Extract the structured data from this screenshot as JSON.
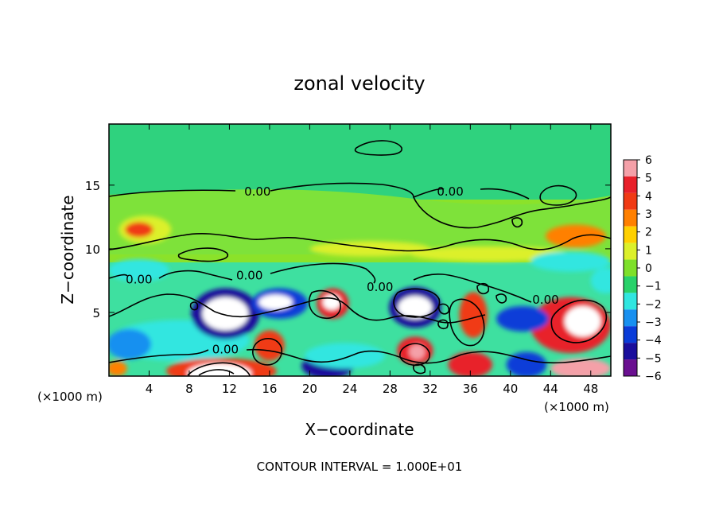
{
  "chart_data": {
    "type": "heatmap",
    "title": "zonal velocity",
    "xlabel": "X−coordinate",
    "ylabel": "Z−coordinate",
    "x_unit_left": "(×1000 m)",
    "x_unit_right": "(×1000 m)",
    "xlim": [
      0,
      50
    ],
    "ylim": [
      0,
      19.8
    ],
    "xticks": [
      4,
      8,
      12,
      16,
      20,
      24,
      28,
      32,
      36,
      40,
      44,
      48
    ],
    "xtick_labels": [
      "4",
      "8",
      "12",
      "16",
      "20",
      "24",
      "28",
      "32",
      "36",
      "40",
      "44",
      "48"
    ],
    "yticks": [
      5,
      10,
      15
    ],
    "ytick_labels": [
      "5",
      "10",
      "15"
    ],
    "colorbar": {
      "levels": [
        6,
        5,
        4,
        3,
        2,
        1,
        0,
        -1,
        -2,
        -3,
        -4,
        -5,
        -6
      ],
      "labels": [
        "6",
        "5",
        "4",
        "3",
        "2",
        "1",
        "0",
        "−1",
        "−2",
        "−3",
        "−4",
        "−5",
        "−6"
      ],
      "colors": [
        "#f4a0a8",
        "#e8202a",
        "#f03a14",
        "#ff8000",
        "#ffd000",
        "#dcf02a",
        "#7ee02a",
        "#28d26a",
        "#30e6e0",
        "#1890f0",
        "#0a3cd8",
        "#1a0e9c",
        "#6a1090"
      ]
    },
    "contour_labels": [
      {
        "text": "0.00",
        "x": 14.8,
        "y": 14.5
      },
      {
        "text": "0.00",
        "x": 34.0,
        "y": 14.5
      },
      {
        "text": "0.00",
        "x": 3.0,
        "y": 7.6
      },
      {
        "text": "0.00",
        "x": 14.0,
        "y": 7.9
      },
      {
        "text": "0.00",
        "x": 27.0,
        "y": 7.0
      },
      {
        "text": "0.00",
        "x": 43.5,
        "y": 6.0
      },
      {
        "text": "0.00",
        "x": 11.6,
        "y": 2.1
      }
    ],
    "features": [
      {
        "value": 1.0,
        "x": 3.6,
        "y": 11.5,
        "rx": 2.6,
        "ry": 1.1
      },
      {
        "value": 3.5,
        "x": 3.0,
        "y": 11.5,
        "rx": 1.4,
        "ry": 0.6
      },
      {
        "value": 1.2,
        "x": 26.0,
        "y": 10.0,
        "rx": 6.0,
        "ry": 0.6
      },
      {
        "value": 2.5,
        "x": 46.5,
        "y": 11.0,
        "rx": 3.0,
        "ry": 0.9
      },
      {
        "value": 1.2,
        "x": 38.0,
        "y": 9.6,
        "rx": 8.0,
        "ry": 0.6
      },
      {
        "value": -2.4,
        "x": 3.0,
        "y": 8.3,
        "rx": 3.0,
        "ry": 0.9
      },
      {
        "value": -2.2,
        "x": 46.0,
        "y": 9.0,
        "rx": 4.0,
        "ry": 0.8
      },
      {
        "value": -1.8,
        "x": 7.0,
        "y": 2.8,
        "rx": 7.0,
        "ry": 1.6
      },
      {
        "value": -3.2,
        "x": 2.0,
        "y": 2.5,
        "rx": 2.2,
        "ry": 1.2
      },
      {
        "value": -4.8,
        "x": 11.6,
        "y": 4.9,
        "rx": 3.4,
        "ry": 2.0
      },
      {
        "value": -7.5,
        "x": 11.6,
        "y": 4.9,
        "rx": 2.3,
        "ry": 1.3
      },
      {
        "value": -4.5,
        "x": 17.0,
        "y": 5.7,
        "rx": 2.8,
        "ry": 1.2
      },
      {
        "value": -7.0,
        "x": 16.6,
        "y": 5.8,
        "rx": 1.7,
        "ry": 0.6
      },
      {
        "value": 4.8,
        "x": 22.3,
        "y": 5.7,
        "rx": 1.6,
        "ry": 1.2
      },
      {
        "value": 7.2,
        "x": 22.2,
        "y": 5.8,
        "rx": 0.9,
        "ry": 0.6
      },
      {
        "value": -4.8,
        "x": 30.5,
        "y": 5.4,
        "rx": 2.6,
        "ry": 1.6
      },
      {
        "value": -7.3,
        "x": 30.5,
        "y": 5.4,
        "rx": 1.7,
        "ry": 0.9
      },
      {
        "value": 4.0,
        "x": 36.3,
        "y": 4.8,
        "rx": 1.4,
        "ry": 1.8
      },
      {
        "value": 5.2,
        "x": 46.0,
        "y": 4.0,
        "rx": 4.0,
        "ry": 2.2
      },
      {
        "value": 7.5,
        "x": 47.2,
        "y": 4.3,
        "rx": 1.8,
        "ry": 1.2
      },
      {
        "value": -4.5,
        "x": 41.2,
        "y": 4.5,
        "rx": 2.6,
        "ry": 1.0
      },
      {
        "value": 4.0,
        "x": 16.0,
        "y": 2.4,
        "rx": 1.5,
        "ry": 1.2
      },
      {
        "value": 4.5,
        "x": 30.5,
        "y": 2.0,
        "rx": 1.8,
        "ry": 1.1
      },
      {
        "value": 6.5,
        "x": 30.7,
        "y": 1.9,
        "rx": 0.8,
        "ry": 0.6
      },
      {
        "value": 4.0,
        "x": 11.2,
        "y": 0.4,
        "rx": 5.5,
        "ry": 1.0
      },
      {
        "value": 7.5,
        "x": 11.0,
        "y": 0.2,
        "rx": 3.2,
        "ry": 0.8
      },
      {
        "value": 3.2,
        "x": 0.8,
        "y": 0.6,
        "rx": 1.0,
        "ry": 0.6
      },
      {
        "value": -5.5,
        "x": 21.8,
        "y": 0.8,
        "rx": 2.6,
        "ry": 1.0
      },
      {
        "value": 4.5,
        "x": 36.0,
        "y": 0.9,
        "rx": 2.2,
        "ry": 1.0
      },
      {
        "value": -4.2,
        "x": 41.6,
        "y": 0.9,
        "rx": 2.0,
        "ry": 1.0
      },
      {
        "value": 6.5,
        "x": 47.0,
        "y": 0.6,
        "rx": 3.0,
        "ry": 0.8
      },
      {
        "value": -1.6,
        "x": 23.5,
        "y": 1.6,
        "rx": 4.0,
        "ry": 1.0
      },
      {
        "value": -2.0,
        "x": 49.5,
        "y": 7.5,
        "rx": 1.5,
        "ry": 1.0
      }
    ],
    "note": "CONTOUR INTERVAL = 1.000E+01"
  }
}
